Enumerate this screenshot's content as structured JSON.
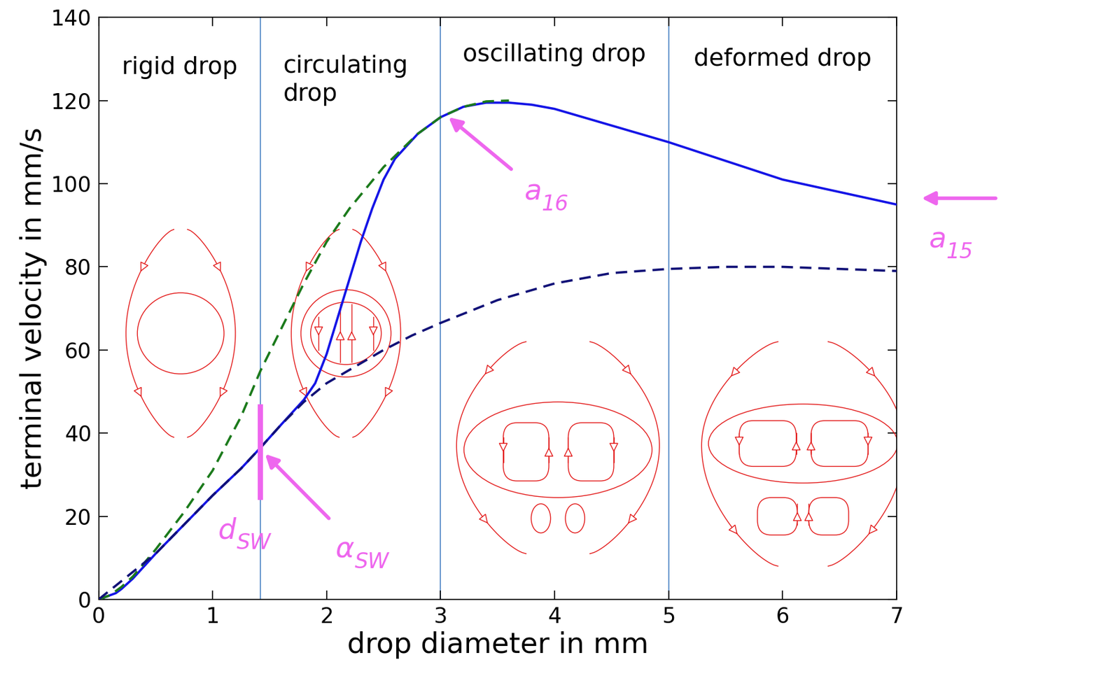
{
  "chart_data": {
    "type": "line",
    "xlabel": "drop diameter in mm",
    "ylabel": "terminal velocity in mm/s",
    "xlim": [
      0,
      7
    ],
    "ylim": [
      0,
      140
    ],
    "xticks": [
      0,
      1,
      2,
      3,
      4,
      5,
      6,
      7
    ],
    "yticks": [
      0,
      20,
      40,
      60,
      80,
      100,
      120,
      140
    ],
    "grid": false,
    "series": [
      {
        "color": "#1414e6",
        "line_style": "solid",
        "x": [
          0,
          0.05,
          0.1,
          0.15,
          0.2,
          0.3,
          0.5,
          0.75,
          1.0,
          1.25,
          1.42,
          1.6,
          1.8,
          1.9,
          2.0,
          2.1,
          2.2,
          2.3,
          2.4,
          2.5,
          2.6,
          2.8,
          3.0,
          3.2,
          3.4,
          3.6,
          3.8,
          4.0,
          4.5,
          5.0,
          5.5,
          6.0,
          6.5,
          7.0
        ],
        "values": [
          0,
          0.5,
          1,
          1.5,
          2.5,
          5,
          11,
          18,
          25,
          31.5,
          36.5,
          42,
          48,
          52,
          59,
          68,
          77,
          86,
          94,
          101,
          106,
          112,
          116,
          118.5,
          119.5,
          119.5,
          119,
          118,
          114,
          110,
          105.5,
          101,
          98,
          95
        ]
      },
      {
        "color": "#1b7a1b",
        "line_style": "dashed",
        "x": [
          0,
          0.1,
          0.2,
          0.3,
          0.5,
          0.75,
          1.0,
          1.25,
          1.42,
          1.6,
          1.8,
          2.0,
          2.2,
          2.5,
          2.8,
          3.0,
          3.2,
          3.4,
          3.6
        ],
        "values": [
          0,
          1,
          3,
          5.5,
          12,
          21,
          31,
          44,
          55,
          65,
          76,
          86,
          94,
          104,
          112,
          116,
          118.5,
          119.8,
          120
        ]
      },
      {
        "color": "#111177",
        "line_style": "dashed",
        "x": [
          0,
          0.25,
          0.5,
          0.75,
          1.0,
          1.25,
          1.42,
          1.6,
          1.8,
          2.0,
          2.25,
          2.5,
          2.75,
          3.0,
          3.5,
          4.0,
          4.5,
          5.0,
          5.5,
          6.0,
          6.5,
          7.0
        ],
        "values": [
          0,
          5.5,
          11,
          18,
          25,
          31.5,
          36.5,
          42,
          47.5,
          52,
          56,
          60,
          63.5,
          66.5,
          72,
          76,
          78.5,
          79.5,
          80,
          80,
          79.5,
          79
        ]
      }
    ],
    "regions": {
      "boundaries": [
        1.42,
        3.0,
        5.0
      ],
      "labels": [
        "rigid drop",
        "circulating\ndrop",
        "oscillating drop",
        "deformed drop"
      ]
    },
    "annotations": [
      {
        "text": "d",
        "subscript": "SW",
        "x": 1.42,
        "y_range": [
          24,
          47
        ]
      },
      {
        "text": "α",
        "subscript": "SW",
        "x": 1.46,
        "y": 35
      },
      {
        "text": "a",
        "subscript": "16",
        "x": 3.07,
        "y": 116
      },
      {
        "text": "a",
        "subscript": "15",
        "x": 7.0,
        "y": 96.5
      }
    ]
  }
}
